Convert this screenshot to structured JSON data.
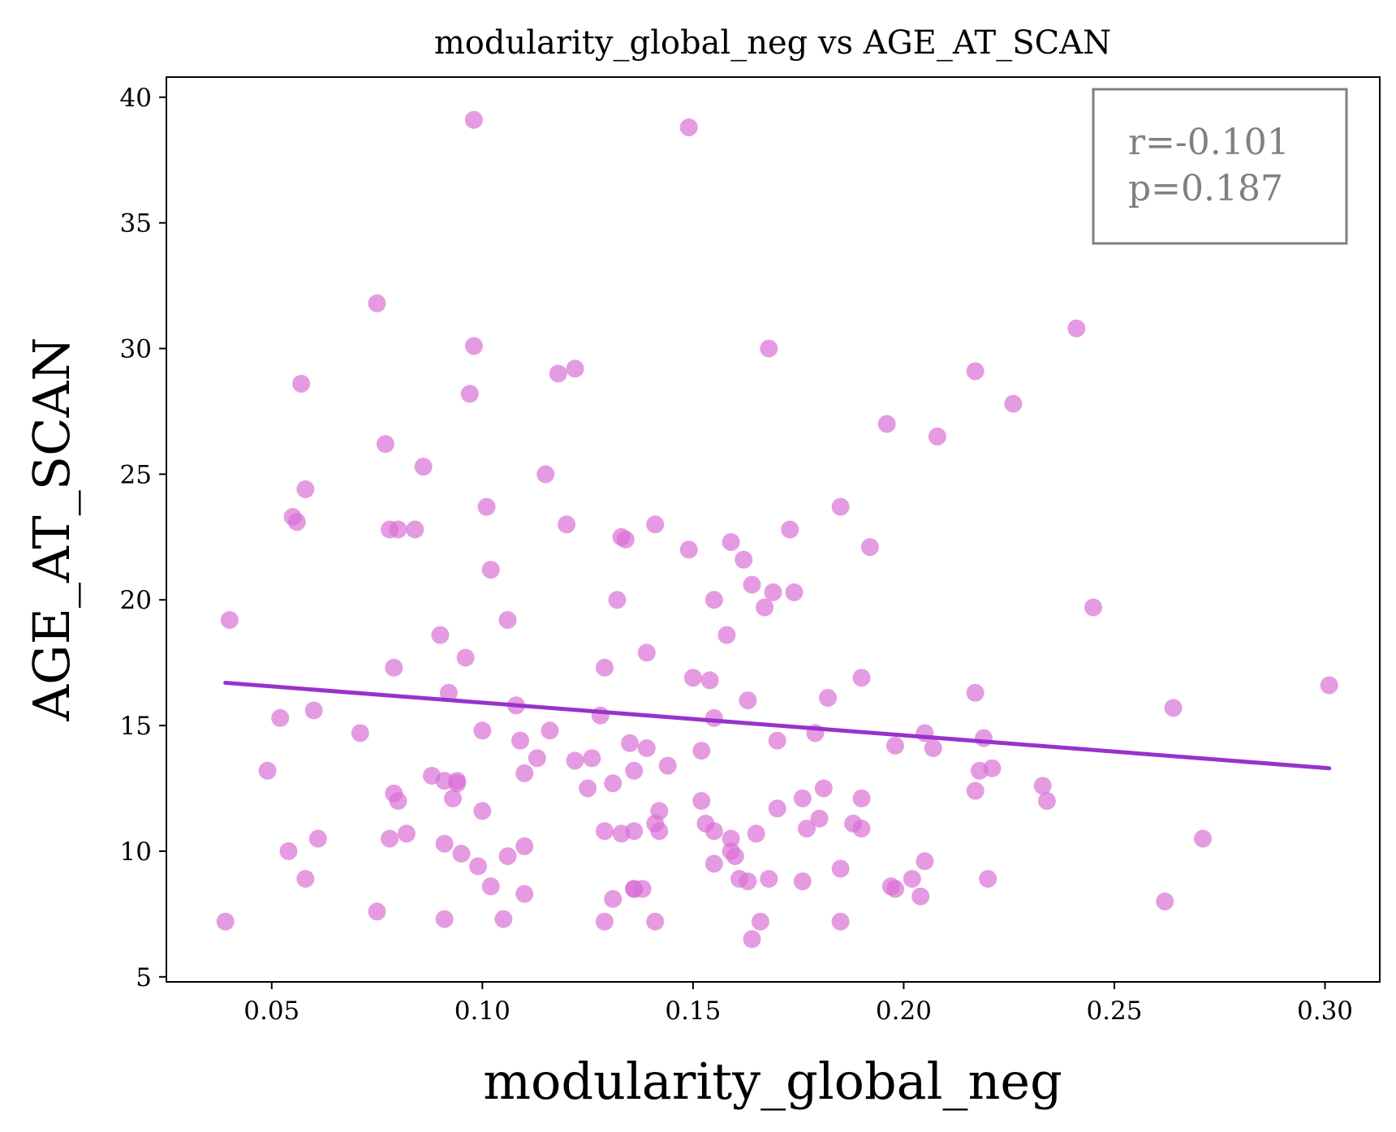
{
  "chart_data": {
    "type": "scatter",
    "title": "modularity_global_neg vs AGE_AT_SCAN",
    "xlabel": "modularity_global_neg",
    "ylabel": "AGE_AT_SCAN",
    "xlim": [
      0.025,
      0.313
    ],
    "ylim": [
      4.8,
      40.8
    ],
    "xticks": [
      0.05,
      0.1,
      0.15,
      0.2,
      0.25,
      0.3
    ],
    "xtick_labels": [
      "0.05",
      "0.10",
      "0.15",
      "0.20",
      "0.25",
      "0.30"
    ],
    "yticks": [
      5,
      10,
      15,
      20,
      25,
      30,
      35,
      40
    ],
    "ytick_labels": [
      "5",
      "10",
      "15",
      "20",
      "25",
      "30",
      "35",
      "40"
    ],
    "grid": false,
    "point_color": "#DA70D6",
    "line_color": "#9932CC",
    "annotation": {
      "r": "r=-0.101",
      "p": "p=0.187",
      "placement": "top-right"
    },
    "regression": {
      "x": [
        0.039,
        0.301
      ],
      "y": [
        16.7,
        13.3
      ]
    },
    "points": {
      "x": [
        0.098,
        0.149,
        0.075,
        0.098,
        0.057,
        0.118,
        0.122,
        0.097,
        0.168,
        0.241,
        0.217,
        0.226,
        0.196,
        0.208,
        0.077,
        0.058,
        0.086,
        0.115,
        0.055,
        0.056,
        0.101,
        0.078,
        0.08,
        0.084,
        0.12,
        0.141,
        0.133,
        0.134,
        0.149,
        0.159,
        0.162,
        0.173,
        0.185,
        0.192,
        0.102,
        0.04,
        0.106,
        0.09,
        0.096,
        0.132,
        0.139,
        0.155,
        0.158,
        0.164,
        0.169,
        0.167,
        0.174,
        0.245,
        0.079,
        0.129,
        0.15,
        0.154,
        0.19,
        0.217,
        0.301,
        0.264,
        0.052,
        0.06,
        0.071,
        0.092,
        0.108,
        0.1,
        0.116,
        0.128,
        0.135,
        0.139,
        0.155,
        0.152,
        0.163,
        0.17,
        0.179,
        0.182,
        0.205,
        0.207,
        0.198,
        0.219,
        0.049,
        0.088,
        0.091,
        0.094,
        0.093,
        0.11,
        0.113,
        0.122,
        0.126,
        0.125,
        0.131,
        0.136,
        0.144,
        0.109,
        0.136,
        0.142,
        0.218,
        0.221,
        0.233,
        0.234,
        0.217,
        0.079,
        0.08,
        0.094,
        0.1,
        0.082,
        0.078,
        0.061,
        0.054,
        0.091,
        0.095,
        0.11,
        0.106,
        0.099,
        0.102,
        0.058,
        0.129,
        0.133,
        0.136,
        0.141,
        0.142,
        0.152,
        0.153,
        0.155,
        0.159,
        0.159,
        0.16,
        0.165,
        0.17,
        0.177,
        0.176,
        0.18,
        0.188,
        0.19,
        0.19,
        0.181,
        0.185,
        0.155,
        0.161,
        0.163,
        0.168,
        0.176,
        0.198,
        0.197,
        0.202,
        0.205,
        0.22,
        0.271,
        0.204,
        0.039,
        0.075,
        0.091,
        0.105,
        0.11,
        0.129,
        0.131,
        0.136,
        0.138,
        0.141,
        0.164,
        0.166,
        0.185,
        0.262
      ],
      "y": [
        39.1,
        38.8,
        31.8,
        30.1,
        28.6,
        29.0,
        29.2,
        28.2,
        30.0,
        30.8,
        29.1,
        27.8,
        27.0,
        26.5,
        26.2,
        24.4,
        25.3,
        25.0,
        23.3,
        23.1,
        23.7,
        22.8,
        22.8,
        22.8,
        23.0,
        23.0,
        22.5,
        22.4,
        22.0,
        22.3,
        21.6,
        22.8,
        23.7,
        22.1,
        21.2,
        19.2,
        19.2,
        18.6,
        17.7,
        20.0,
        17.9,
        20.0,
        18.6,
        20.6,
        20.3,
        19.7,
        20.3,
        19.7,
        17.3,
        17.3,
        16.9,
        16.8,
        16.9,
        16.3,
        16.6,
        15.7,
        15.3,
        15.6,
        14.7,
        16.3,
        15.8,
        14.8,
        14.8,
        15.4,
        14.3,
        14.1,
        15.3,
        14.0,
        16.0,
        14.4,
        14.7,
        16.1,
        14.7,
        14.1,
        14.2,
        14.5,
        13.2,
        13.0,
        12.8,
        12.7,
        12.1,
        13.1,
        13.7,
        13.6,
        13.7,
        12.5,
        12.7,
        13.2,
        13.4,
        14.4,
        8.5,
        11.6,
        13.2,
        13.3,
        12.6,
        12.0,
        12.4,
        12.3,
        12.0,
        12.8,
        11.6,
        10.7,
        10.5,
        10.5,
        10.0,
        10.3,
        9.9,
        10.2,
        9.8,
        9.4,
        8.6,
        8.9,
        10.8,
        10.7,
        10.8,
        11.1,
        10.8,
        12.0,
        11.1,
        10.8,
        10.5,
        10.0,
        9.8,
        10.7,
        11.7,
        10.9,
        12.1,
        11.3,
        11.1,
        10.9,
        12.1,
        12.5,
        9.3,
        9.5,
        8.9,
        8.8,
        8.9,
        8.8,
        8.5,
        8.6,
        8.9,
        9.6,
        8.9,
        10.5,
        8.2,
        7.2,
        7.6,
        7.3,
        7.3,
        8.3,
        7.2,
        8.1,
        8.5,
        8.5,
        7.2,
        6.5,
        7.2,
        7.2,
        8.0
      ]
    }
  }
}
